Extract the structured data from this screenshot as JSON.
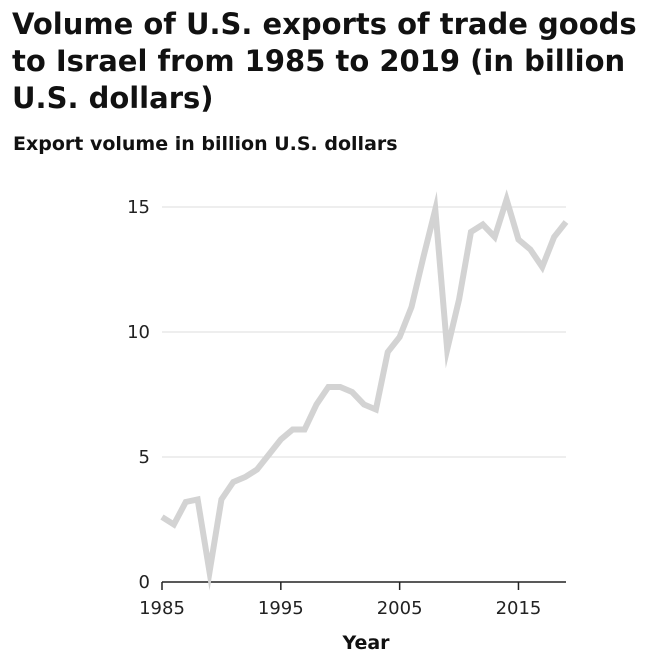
{
  "chart_data": {
    "type": "line",
    "title": "Volume of U.S. exports of trade goods to Israel from 1985 to 2019 (in billion U.S. dollars)",
    "xlabel": "Year",
    "ylabel": "Export volume in billion U.S. dollars",
    "xlim": [
      1985,
      2019
    ],
    "ylim": [
      0,
      15
    ],
    "xticks": [
      1985,
      1995,
      2005,
      2015
    ],
    "yticks": [
      0,
      5,
      10,
      15
    ],
    "grid": "horizontal",
    "line_color": "#d3d3d3",
    "x": [
      1985,
      1986,
      1987,
      1988,
      1989,
      1990,
      1991,
      1992,
      1993,
      1994,
      1995,
      1996,
      1997,
      1998,
      1999,
      2000,
      2001,
      2002,
      2003,
      2004,
      2005,
      2006,
      2007,
      2008,
      2009,
      2010,
      2011,
      2012,
      2013,
      2014,
      2015,
      2016,
      2017,
      2018,
      2019
    ],
    "series": [
      {
        "values": [
          2.6,
          2.3,
          3.2,
          3.3,
          0.4,
          3.3,
          4.0,
          4.2,
          4.5,
          5.1,
          5.7,
          6.1,
          6.1,
          7.1,
          7.8,
          7.8,
          7.6,
          7.1,
          6.9,
          9.2,
          9.8,
          11.0,
          13.0,
          14.9,
          9.3,
          11.3,
          14.0,
          14.3,
          13.8,
          15.3,
          13.7,
          13.3,
          12.6,
          13.8,
          14.4
        ]
      }
    ]
  }
}
